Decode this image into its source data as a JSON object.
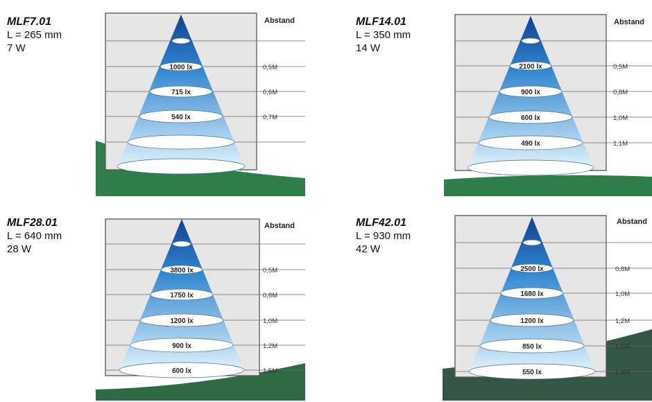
{
  "panels": [
    {
      "model": "MLF7.01",
      "length": "L = 265 mm",
      "power": "7 W",
      "header": "Abstand",
      "rows": [
        {
          "lux": "1000 lx",
          "dist": "0,5M"
        },
        {
          "lux": "715 lx",
          "dist": "0,6M"
        },
        {
          "lux": "540 lx",
          "dist": "0,7M"
        },
        {
          "lux": "",
          "dist": ""
        },
        {
          "lux": "",
          "dist": ""
        }
      ]
    },
    {
      "model": "MLF14.01",
      "length": "L = 350 mm",
      "power": "14 W",
      "header": "Abstand",
      "rows": [
        {
          "lux": "2100 lx",
          "dist": "0,5M"
        },
        {
          "lux": "900 lx",
          "dist": "0,8M"
        },
        {
          "lux": "600 lx",
          "dist": "1,0M"
        },
        {
          "lux": "490 lx",
          "dist": "1,1M"
        },
        {
          "lux": "",
          "dist": ""
        }
      ]
    },
    {
      "model": "MLF28.01",
      "length": "L = 640 mm",
      "power": "28 W",
      "header": "Abstand",
      "rows": [
        {
          "lux": "3800 lx",
          "dist": "0,5M"
        },
        {
          "lux": "1750 lx",
          "dist": "0,8M"
        },
        {
          "lux": "1200 lx",
          "dist": "1,0M"
        },
        {
          "lux": "900 lx",
          "dist": "1,2M"
        },
        {
          "lux": "600 lx",
          "dist": "1,5M"
        }
      ]
    },
    {
      "model": "MLF42.01",
      "length": "L = 930 mm",
      "power": "42 W",
      "header": "Abstand",
      "rows": [
        {
          "lux": "2500 lx",
          "dist": "0,8M"
        },
        {
          "lux": "1680 lx",
          "dist": "1,0M"
        },
        {
          "lux": "1200 lx",
          "dist": "1,2M"
        },
        {
          "lux": "850 lx",
          "dist": "1,5M"
        },
        {
          "lux": "550 lx",
          "dist": "1,8M"
        }
      ]
    }
  ]
}
